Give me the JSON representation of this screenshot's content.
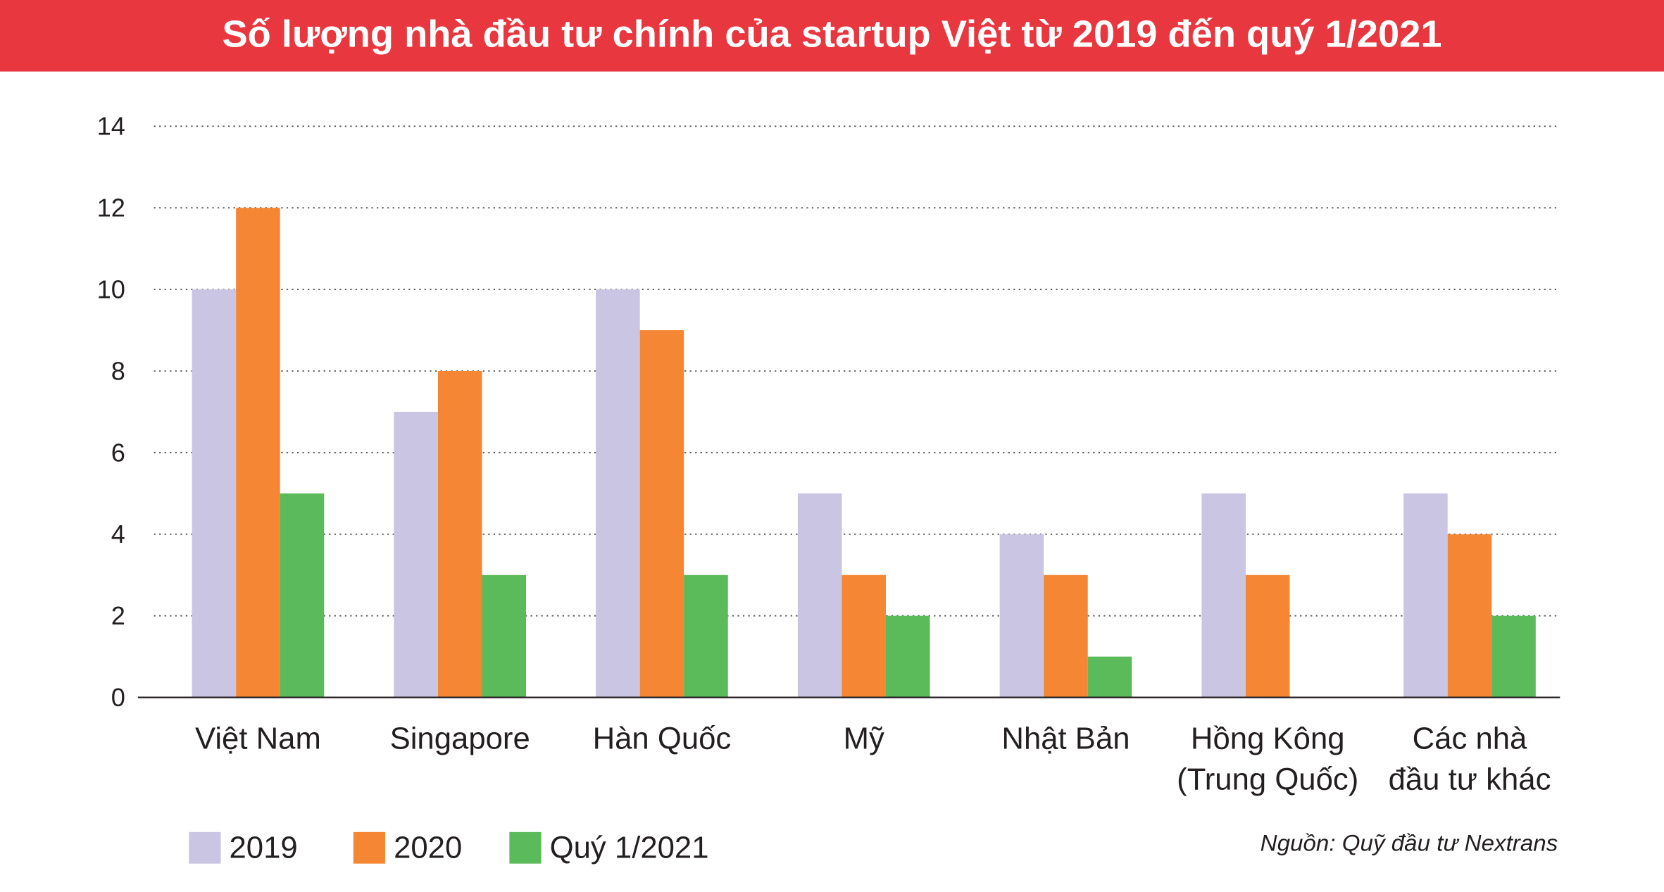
{
  "chart_data": {
    "type": "bar",
    "title": "Số lượng nhà đầu tư chính của startup Việt từ 2019 đến quý 1/2021",
    "categories": [
      [
        "Việt Nam"
      ],
      [
        "Singapore"
      ],
      [
        "Hàn Quốc"
      ],
      [
        "Mỹ"
      ],
      [
        "Nhật Bản"
      ],
      [
        "Hồng Kông",
        "(Trung Quốc)"
      ],
      [
        "Các nhà",
        "đầu tư khác"
      ]
    ],
    "series": [
      {
        "name": "2019",
        "color": "#c9c5e3",
        "values": [
          10,
          7,
          10,
          5,
          4,
          5,
          5
        ]
      },
      {
        "name": "2020",
        "color": "#f58634",
        "values": [
          12,
          8,
          9,
          3,
          3,
          3,
          4
        ]
      },
      {
        "name": "Quý 1/2021",
        "color": "#5bbb5a",
        "values": [
          5,
          3,
          3,
          2,
          1,
          0,
          2
        ]
      }
    ],
    "ylim": [
      0,
      14
    ],
    "yticks": [
      0,
      2,
      4,
      6,
      8,
      10,
      12,
      14
    ],
    "grid": true,
    "source": "Nguồn: Quỹ đầu tư Nextrans"
  }
}
